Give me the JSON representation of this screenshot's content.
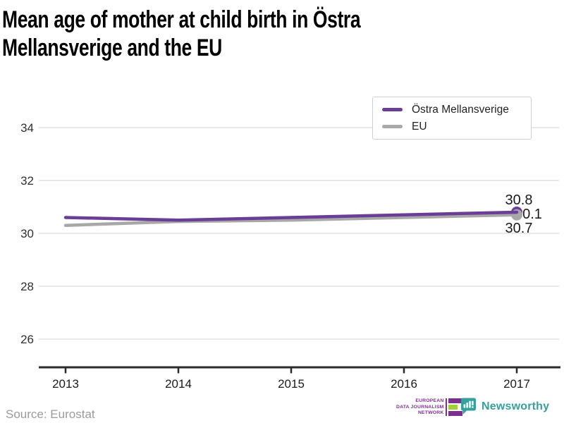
{
  "header": {
    "title_lines": [
      "Mean age of mother at child birth in Östra",
      "Mellansverige and the EU"
    ]
  },
  "chart_data": {
    "type": "line",
    "title": "Mean age of mother at child birth in Östra Mellansverige and the EU",
    "x": [
      2013,
      2014,
      2015,
      2016,
      2017
    ],
    "series": [
      {
        "name": "Östra Mellansverige",
        "color": "#6a3d96",
        "values": [
          30.6,
          30.5,
          30.6,
          30.7,
          30.8
        ]
      },
      {
        "name": "EU",
        "color": "#a8a8a8",
        "values": [
          30.3,
          30.45,
          30.5,
          30.6,
          30.7
        ]
      }
    ],
    "xlabel": "",
    "ylabel": "",
    "yticks": [
      26,
      28,
      30,
      32,
      34
    ],
    "ylim": [
      25.1,
      34.9
    ],
    "grid": "horizontal",
    "legend_position": "top-right",
    "end_labels": {
      "top": "30.8",
      "middle": "0.1",
      "bottom": "30.7"
    }
  },
  "legend": {
    "items": [
      {
        "label": "Östra Mellansverige"
      },
      {
        "label": "EU"
      }
    ]
  },
  "footer": {
    "source": "Source: Eurostat",
    "edjnet": {
      "lines": [
        "EUROPEAN",
        "DATA JOURNALISM",
        "NETWORK"
      ],
      "purple": "#7b2f8e",
      "green": "#a6ce39"
    },
    "newsworthy": {
      "label": "Newsworthy",
      "teal": "#36a09c"
    }
  },
  "colors": {
    "axis": "#2b2b2b",
    "grid": "#e2e2e2",
    "tick_text": "#303030",
    "value_label": "#1a1a1a"
  }
}
